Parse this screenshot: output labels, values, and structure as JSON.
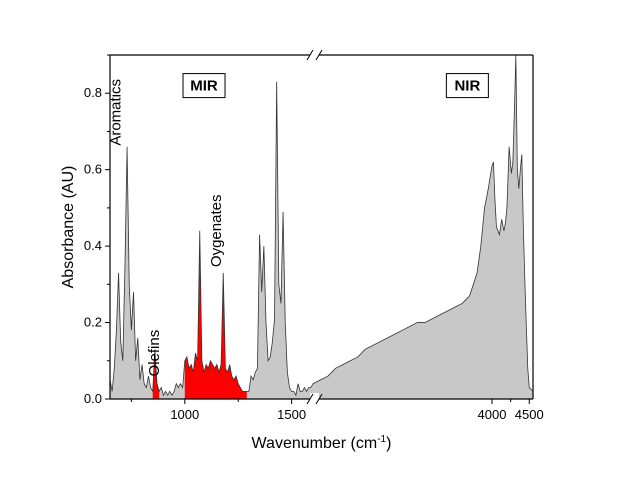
{
  "chart_data": {
    "type": "area",
    "xlabel": "Wavenumber (cm",
    "xlabel_sup": "-1",
    "xlabel_end": ")",
    "ylabel": "Absorbance (AU)",
    "ylim": [
      0,
      0.9
    ],
    "y_ticks": [
      0.0,
      0.2,
      0.4,
      0.6,
      0.8
    ],
    "y_tick_labels": [
      "0.0",
      "0.2",
      "0.4",
      "0.6",
      "0.8"
    ],
    "x_ticks": [
      1000,
      1500,
      4000,
      4500
    ],
    "x_tick_labels": [
      "1000",
      "1500",
      "4000",
      "4500"
    ],
    "axis_break": true,
    "segments": [
      {
        "name": "MIR",
        "xlim": [
          650,
          1600
        ]
      },
      {
        "name": "NIR",
        "xlim": [
          1600,
          4550
        ]
      }
    ],
    "colors": {
      "spectrum_fill": "#c8c8c8",
      "highlight_fill": "#ff0000",
      "line": "#333333"
    },
    "series": [
      {
        "x": [
          650,
          660,
          670,
          680,
          690,
          700,
          710,
          720,
          730,
          740,
          750,
          760,
          770,
          780,
          790,
          800,
          810,
          820,
          830,
          840,
          850,
          860,
          870,
          880,
          890,
          900,
          910,
          920,
          930,
          940,
          950,
          960,
          970,
          980,
          990,
          1000,
          1010,
          1020,
          1030,
          1040,
          1050,
          1060,
          1070,
          1080,
          1090,
          1100,
          1110,
          1120,
          1130,
          1140,
          1150,
          1160,
          1170,
          1180,
          1190,
          1200,
          1210,
          1220,
          1230,
          1240,
          1250,
          1260,
          1270,
          1280,
          1290,
          1300,
          1310,
          1320,
          1330,
          1340,
          1350,
          1360,
          1370,
          1380,
          1390,
          1400,
          1410,
          1420,
          1430,
          1440,
          1450,
          1460,
          1470,
          1480,
          1490,
          1500,
          1510,
          1520,
          1530,
          1540,
          1550,
          1560,
          1570,
          1580,
          1590,
          1600
        ],
        "values": [
          0.05,
          0.02,
          0.08,
          0.18,
          0.33,
          0.15,
          0.1,
          0.35,
          0.66,
          0.3,
          0.18,
          0.28,
          0.1,
          0.16,
          0.05,
          0.09,
          0.04,
          0.03,
          0.06,
          0.03,
          0.02,
          0.13,
          0.04,
          0.02,
          0.03,
          0.01,
          0.02,
          0.01,
          0.02,
          0.01,
          0.02,
          0.04,
          0.03,
          0.04,
          0.03,
          0.1,
          0.11,
          0.08,
          0.09,
          0.07,
          0.12,
          0.1,
          0.44,
          0.1,
          0.07,
          0.09,
          0.08,
          0.1,
          0.09,
          0.08,
          0.09,
          0.07,
          0.09,
          0.33,
          0.08,
          0.07,
          0.09,
          0.06,
          0.05,
          0.06,
          0.04,
          0.03,
          0.02,
          0.02,
          0.02,
          0.02,
          0.06,
          0.05,
          0.07,
          0.08,
          0.43,
          0.28,
          0.4,
          0.2,
          0.1,
          0.11,
          0.15,
          0.21,
          0.83,
          0.3,
          0.25,
          0.49,
          0.2,
          0.07,
          0.03,
          0.02,
          0.02,
          0.01,
          0.04,
          0.02,
          0.02,
          0.03,
          0.02,
          0.03,
          0.03,
          0.04
        ]
      },
      {
        "x": [
          1600,
          1700,
          1800,
          1900,
          2000,
          2100,
          2200,
          2300,
          2400,
          2500,
          2600,
          2700,
          2800,
          2900,
          3000,
          3100,
          3200,
          3300,
          3400,
          3500,
          3600,
          3700,
          3800,
          3850,
          3900,
          3950,
          4000,
          4020,
          4040,
          4060,
          4080,
          4100,
          4130,
          4160,
          4180,
          4200,
          4230,
          4260,
          4280,
          4300,
          4320,
          4340,
          4360,
          4380,
          4400,
          4420,
          4450,
          4480,
          4500,
          4550
        ],
        "values": [
          0.04,
          0.05,
          0.06,
          0.08,
          0.09,
          0.1,
          0.11,
          0.13,
          0.14,
          0.15,
          0.16,
          0.17,
          0.18,
          0.19,
          0.2,
          0.2,
          0.21,
          0.22,
          0.23,
          0.24,
          0.25,
          0.27,
          0.33,
          0.4,
          0.5,
          0.55,
          0.61,
          0.62,
          0.52,
          0.45,
          0.44,
          0.43,
          0.47,
          0.44,
          0.46,
          0.5,
          0.66,
          0.59,
          0.62,
          0.75,
          0.9,
          0.6,
          0.55,
          0.6,
          0.64,
          0.45,
          0.25,
          0.08,
          0.03,
          0.02
        ]
      }
    ],
    "highlights": [
      {
        "xlim": [
          850,
          880
        ]
      },
      {
        "xlim": [
          1000,
          1290
        ]
      }
    ],
    "annotations": [
      {
        "text": "Aromatics",
        "x": 700,
        "y": 0.75,
        "rotation": -90
      },
      {
        "text": "Olefins",
        "x": 880,
        "y": 0.12,
        "rotation": -90
      },
      {
        "text": "Oygenates",
        "x": 1170,
        "y": 0.44,
        "rotation": -90
      }
    ],
    "region_labels": [
      {
        "text": "MIR",
        "x": 1090,
        "y": 0.82
      },
      {
        "text": "NIR",
        "x": 3670,
        "y": 0.82
      }
    ]
  }
}
